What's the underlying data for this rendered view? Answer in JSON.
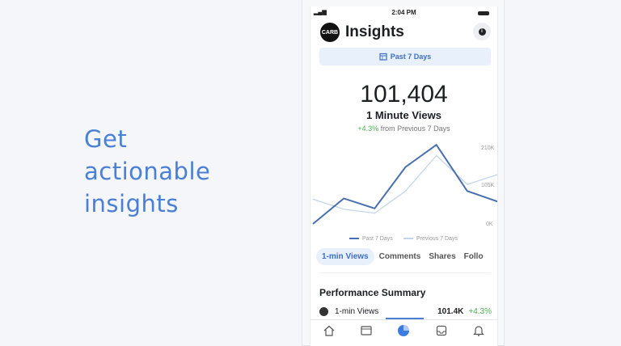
{
  "hero": {
    "lines": [
      "Get",
      "actionable",
      "insights"
    ],
    "color": "#4a7fd6"
  },
  "status": {
    "time": "2:04 PM"
  },
  "header": {
    "logo": "CARB",
    "title": "Insights",
    "info_icon": "info-icon"
  },
  "range": {
    "label": "Past 7 Days",
    "icon": "calendar-icon"
  },
  "metric": {
    "value": "101,404",
    "label": "1 Minute Views",
    "change": "+4.3%",
    "change_suffix": "from Previous 7 Days",
    "change_color": "#4cb050"
  },
  "chart_data": {
    "type": "line",
    "yticks": [
      "210K",
      "105K",
      "0K"
    ],
    "ylim": [
      0,
      210000
    ],
    "series": [
      {
        "name": "Past 7 Days",
        "color": "#4a6fb0",
        "values": [
          0,
          69000,
          42000,
          154000,
          214000,
          89000,
          60000
        ]
      },
      {
        "name": "Previous 7 Days",
        "color": "#c3d6ea",
        "values": [
          67000,
          40000,
          29000,
          89000,
          185000,
          107000,
          134000
        ]
      }
    ],
    "legend": "bottom"
  },
  "tabs": [
    {
      "label": "1-min Views",
      "active": true
    },
    {
      "label": "Comments"
    },
    {
      "label": "Shares"
    },
    {
      "label": "Follo"
    }
  ],
  "summary": {
    "title": "Performance Summary",
    "rows": [
      {
        "label": "1-min Views",
        "value": "101.4K",
        "change": "+4.3%"
      }
    ]
  },
  "nav": [
    "home-icon",
    "feed-icon",
    "insights-icon",
    "inbox-icon",
    "bell-icon"
  ]
}
